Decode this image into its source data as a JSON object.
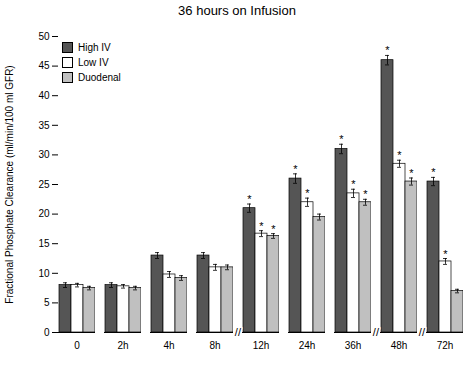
{
  "chart_data": {
    "type": "bar",
    "title": "36 hours on Infusion",
    "ylabel": "Fractional Phosphate Clearance (ml/min/100 ml GFR)",
    "categories": [
      "0",
      "2h",
      "4h",
      "8h",
      "12h",
      "24h",
      "36h",
      "48h",
      "72h"
    ],
    "series": [
      {
        "name": "High IV",
        "color": "#555555",
        "values": [
          8.0,
          8.0,
          13.0,
          13.0,
          21.0,
          26.0,
          31.0,
          46.0,
          25.5
        ],
        "errors": [
          0.4,
          0.4,
          0.5,
          0.5,
          0.7,
          0.8,
          0.8,
          0.8,
          0.7
        ],
        "significant": [
          false,
          false,
          false,
          false,
          true,
          true,
          true,
          true,
          true
        ]
      },
      {
        "name": "Low IV",
        "color": "#ffffff",
        "values": [
          8.0,
          7.8,
          9.8,
          11.0,
          16.7,
          22.0,
          23.5,
          28.5,
          12.0
        ],
        "errors": [
          0.3,
          0.3,
          0.5,
          0.5,
          0.5,
          0.7,
          0.7,
          0.6,
          0.5
        ],
        "significant": [
          false,
          false,
          false,
          false,
          true,
          true,
          true,
          true,
          true
        ]
      },
      {
        "name": "Duodenal",
        "color": "#c0c0c0",
        "values": [
          7.5,
          7.5,
          9.2,
          11.0,
          16.3,
          19.5,
          22.0,
          25.5,
          7.0
        ],
        "errors": [
          0.3,
          0.3,
          0.4,
          0.4,
          0.4,
          0.5,
          0.5,
          0.6,
          0.3
        ],
        "significant": [
          false,
          false,
          false,
          false,
          true,
          false,
          true,
          true,
          false
        ]
      }
    ],
    "annotation": "*",
    "axis_breaks": [
      "8h",
      "36h",
      "48h"
    ],
    "break_label": "//",
    "ylim": [
      0,
      50
    ],
    "yticks": [
      0,
      5,
      10,
      15,
      20,
      25,
      30,
      35,
      40,
      45,
      50
    ],
    "legend": "upper left"
  }
}
